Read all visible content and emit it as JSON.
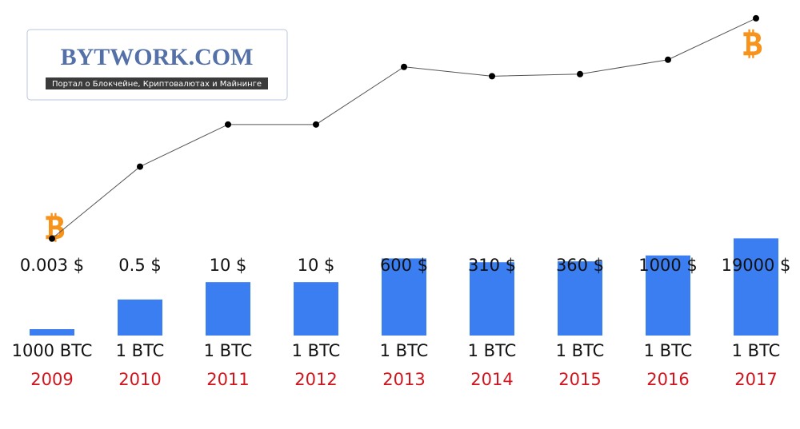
{
  "logo": {
    "title": "BYTWORK.COM",
    "subtitle": "Портал о Блокчейне, Криптовалютах и Майнинге"
  },
  "chart_data": {
    "type": "bar",
    "categories": [
      "2009",
      "2010",
      "2011",
      "2012",
      "2013",
      "2014",
      "2015",
      "2016",
      "2017"
    ],
    "values": [
      0.003,
      0.5,
      10,
      10,
      600,
      310,
      360,
      1000,
      19000
    ],
    "value_labels": [
      "0.003 $",
      "0.5 $",
      "10 $",
      "10 $",
      "600 $",
      "310 $",
      "360 $",
      "1000 $",
      "19000 $"
    ],
    "amounts": [
      "1000 BTC",
      "1 BTC",
      "1 BTC",
      "1 BTC",
      "1 BTC",
      "1 BTC",
      "1 BTC",
      "1 BTC",
      "1 BTC"
    ],
    "ylim": [
      0.001,
      20000
    ],
    "log_scale": true,
    "color": "#3a7ef2",
    "line_color": "#555555",
    "category_color": "#d3141c"
  }
}
